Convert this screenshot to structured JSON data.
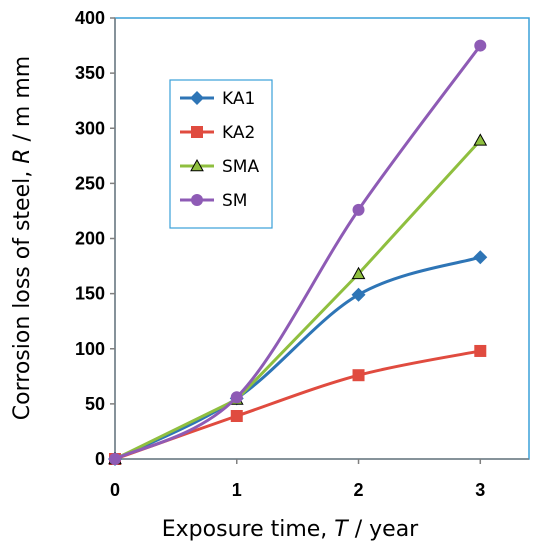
{
  "chart_data": {
    "type": "line",
    "xlabel": {
      "prefix": "Exposure time, ",
      "var": "T",
      "suffix": " / year"
    },
    "ylabel": {
      "prefix": "Corrosion loss of steel, ",
      "var": "R",
      "suffix": " /  m mm"
    },
    "xlim": [
      0,
      3.4
    ],
    "ylim": [
      0,
      400
    ],
    "xticks": [
      "0",
      "1",
      "2",
      "3"
    ],
    "yticks": [
      "0",
      "50",
      "100",
      "150",
      "200",
      "250",
      "300",
      "350",
      "400"
    ],
    "grid": false,
    "legend_position": "top-left",
    "series": [
      {
        "name": "KA1",
        "color": "#2e75b6",
        "marker": "diamond",
        "smooth": true,
        "x": [
          0,
          1,
          2,
          3
        ],
        "y": [
          0,
          55,
          149,
          183
        ]
      },
      {
        "name": "KA2",
        "color": "#e04b3f",
        "marker": "square",
        "smooth": true,
        "x": [
          0,
          1,
          2,
          3
        ],
        "y": [
          0,
          39,
          76,
          98
        ]
      },
      {
        "name": "SMA",
        "color": "#8fbf3f",
        "marker": "triangle",
        "smooth": false,
        "x": [
          0,
          1,
          2,
          3
        ],
        "y": [
          0,
          54,
          168,
          289
        ]
      },
      {
        "name": "SM",
        "color": "#8e5bb5",
        "marker": "circle",
        "smooth": true,
        "x": [
          0,
          1,
          2,
          3
        ],
        "y": [
          0,
          56,
          226,
          375
        ]
      }
    ]
  }
}
